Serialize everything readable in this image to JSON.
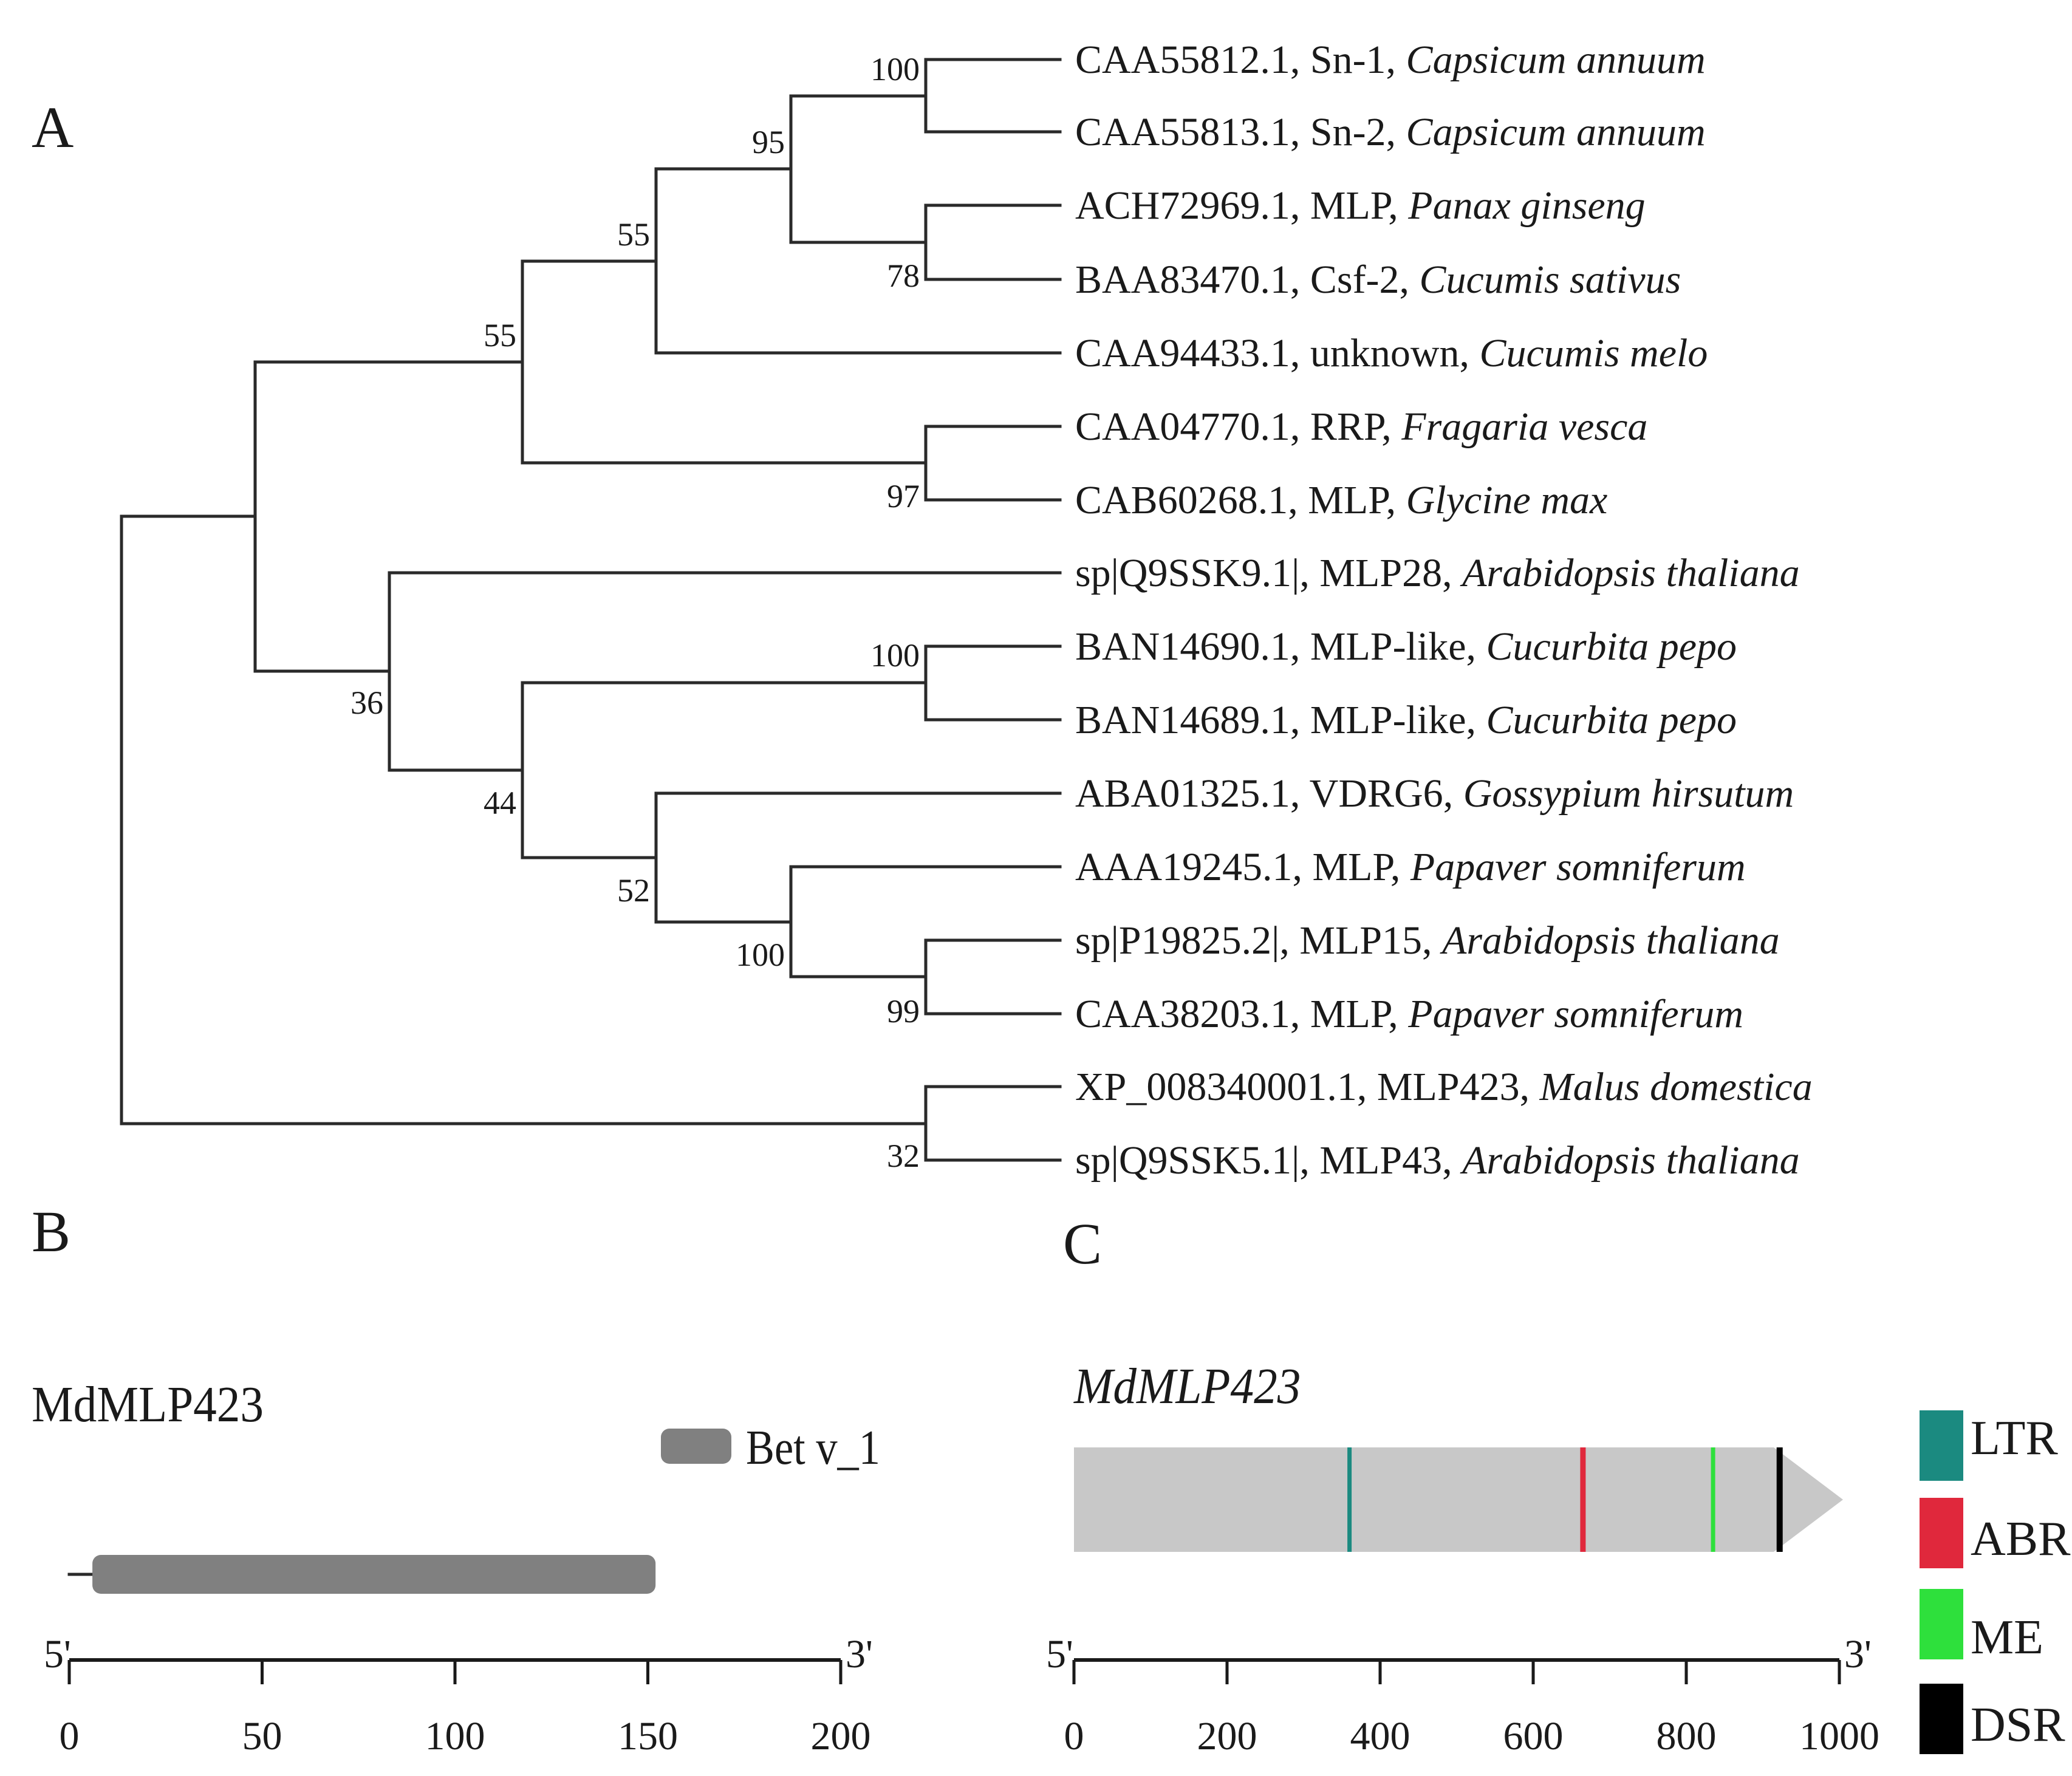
{
  "panel_a": {
    "label": "A",
    "leaves": [
      {
        "id": "CAA55812.1",
        "protein": "Sn-1",
        "species": "Capsicum annuum"
      },
      {
        "id": "CAA55813.1",
        "protein": "Sn-2",
        "species": "Capsicum annuum"
      },
      {
        "id": "ACH72969.1",
        "protein": "MLP",
        "species": "Panax ginseng"
      },
      {
        "id": "BAA83470.1",
        "protein": "Csf-2",
        "species": "Cucumis sativus"
      },
      {
        "id": "CAA94433.1",
        "protein": "unknown",
        "species": "Cucumis melo"
      },
      {
        "id": "CAA04770.1",
        "protein": "RRP",
        "species": "Fragaria vesca"
      },
      {
        "id": "CAB60268.1",
        "protein": "MLP",
        "species": "Glycine max"
      },
      {
        "id": "sp|Q9SSK9.1|",
        "protein": "MLP28",
        "species": "Arabidopsis thaliana"
      },
      {
        "id": "BAN14690.1",
        "protein": "MLP-like",
        "species": "Cucurbita pepo"
      },
      {
        "id": "BAN14689.1",
        "protein": "MLP-like",
        "species": "Cucurbita pepo"
      },
      {
        "id": "ABA01325.1",
        "protein": "VDRG6",
        "species": "Gossypium hirsutum"
      },
      {
        "id": "AAA19245.1",
        "protein": "MLP",
        "species": "Papaver somniferum"
      },
      {
        "id": "sp|P19825.2|",
        "protein": "MLP15",
        "species": "Arabidopsis thaliana"
      },
      {
        "id": "CAA38203.1",
        "protein": "MLP",
        "species": "Papaver somniferum"
      },
      {
        "id": "XP_008340001.1",
        "protein": "MLP423",
        "species": "Malus domestica"
      },
      {
        "id": "sp|Q9SSK5.1|",
        "protein": "MLP43",
        "species": "Arabidopsis thaliana"
      }
    ],
    "bootstrap": {
      "sn_pair": "100",
      "solanaceae_panax": "95",
      "panax_cucumis": "78",
      "upper_group": "55",
      "upper_clade": "55",
      "rrp_glycine": "97",
      "cucurbita_pair": "100",
      "lower_clade": "36",
      "middle_group": "44",
      "gossypium_group": "52",
      "papaver_group": "100",
      "mlp15_papaver": "99",
      "mlp423_mlp43": "32"
    }
  },
  "panel_b": {
    "label": "B",
    "gene": "MdMLP423",
    "legend_label": "Bet v_1",
    "domain_color": "#808080",
    "domain_start": 6,
    "domain_end": 152,
    "protein_length": 0,
    "axis_min": 0,
    "axis_max": 200,
    "ticks": [
      "0",
      "50",
      "100",
      "150",
      "200"
    ],
    "end5": "5'",
    "end3": "3'"
  },
  "panel_c": {
    "label": "C",
    "gene": "MdMLP423",
    "bar_color": "#c8c8c8",
    "axis_min": 0,
    "axis_max": 1000,
    "ticks": [
      "0",
      "200",
      "400",
      "600",
      "800",
      "1000"
    ],
    "end5": "5'",
    "end3": "3'",
    "elements": [
      {
        "name": "LTR",
        "color": "#1b8a80",
        "position": 360
      },
      {
        "name": "ABR",
        "color": "#e0283c",
        "position": 665
      },
      {
        "name": "ME",
        "color": "#2ee03c",
        "position": 835
      },
      {
        "name": "DSR",
        "color": "#000000",
        "position": 922
      }
    ],
    "legend": [
      {
        "label": "LTR",
        "color": "#1b8a80"
      },
      {
        "label": "ABR",
        "color": "#e0283c"
      },
      {
        "label": "ME",
        "color": "#2ee03c"
      },
      {
        "label": "DSR",
        "color": "#000000"
      }
    ]
  }
}
